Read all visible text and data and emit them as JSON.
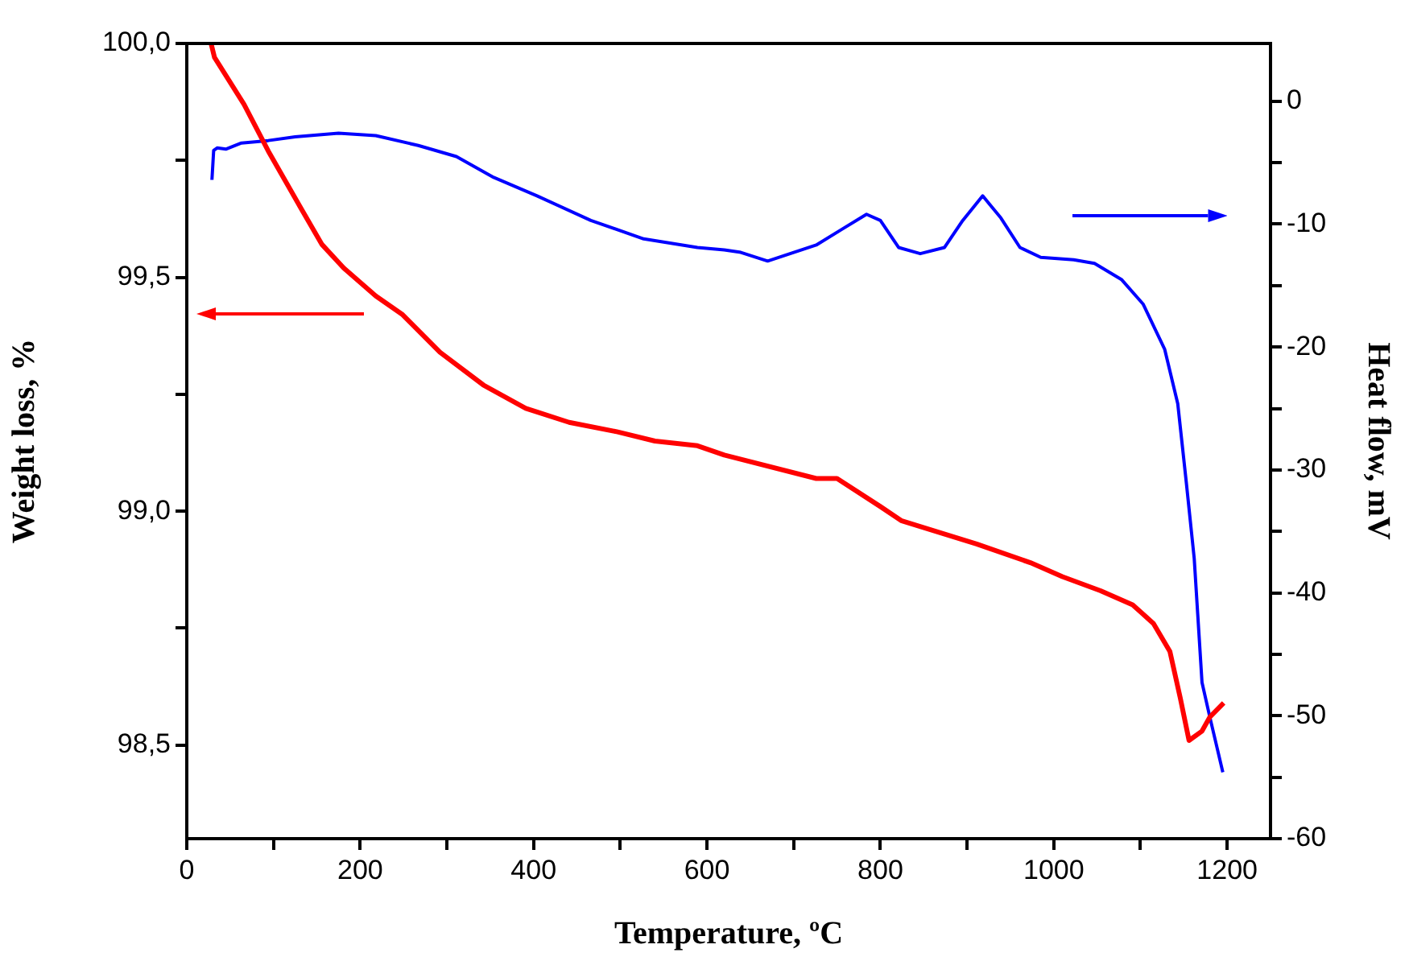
{
  "chart_data": {
    "type": "line",
    "xlabel": "Temperature, ºC",
    "ylabel": "Weight loss, %",
    "y2label": "Heat flow, mV",
    "xlim": [
      0,
      1250
    ],
    "ylim": [
      98.3,
      100
    ],
    "y2lim": [
      -60,
      4.7
    ],
    "xticks": [
      0,
      {
        "value": 100,
        "label": null
      },
      200,
      {
        "value": 300,
        "label": null
      },
      400,
      {
        "value": 500,
        "label": null
      },
      600,
      {
        "value": 700,
        "label": null
      },
      800,
      {
        "value": 900,
        "label": null
      },
      1000,
      {
        "value": 1100,
        "label": null
      },
      1200
    ],
    "yticks": [
      {
        "value": 98.5,
        "label": "98,5"
      },
      {
        "value": 98.75,
        "label": null
      },
      {
        "value": 99,
        "label": "99,0"
      },
      {
        "value": 99.25,
        "label": null
      },
      {
        "value": 99.5,
        "label": "99,5"
      },
      {
        "value": 99.75,
        "label": null
      },
      {
        "value": 100,
        "label": "100,0"
      }
    ],
    "y2ticks": [
      -60,
      {
        "value": -55,
        "label": null
      },
      -50,
      {
        "value": -45,
        "label": null
      },
      -40,
      {
        "value": -35,
        "label": null
      },
      -30,
      {
        "value": -25,
        "label": null
      },
      -20,
      {
        "value": -15,
        "label": null
      },
      -10,
      {
        "value": -5,
        "label": null
      },
      0
    ],
    "series": [
      {
        "axis": "y",
        "color": "#ff0000",
        "x": [
          28,
          32,
          66,
          94,
          131,
          156,
          181,
          218,
          249,
          292,
          342,
          391,
          441,
          496,
          540,
          589,
          620,
          726,
          750,
          800,
          824,
          911,
          973,
          1010,
          1054,
          1091,
          1115,
          1134,
          1146,
          1156,
          1171,
          1180,
          1196
        ],
        "values": [
          100.0,
          99.97,
          99.87,
          99.77,
          99.65,
          99.57,
          99.52,
          99.46,
          99.42,
          99.34,
          99.27,
          99.22,
          99.19,
          99.17,
          99.15,
          99.14,
          99.12,
          99.07,
          99.07,
          99.01,
          98.98,
          98.93,
          98.89,
          98.86,
          98.83,
          98.8,
          98.76,
          98.7,
          98.6,
          98.51,
          98.53,
          98.56,
          98.59
        ]
      },
      {
        "axis": "y2",
        "color": "#0000ff",
        "x": [
          29,
          31,
          35,
          45,
          63,
          94,
          125,
          175,
          218,
          267,
          311,
          354,
          404,
          466,
          527,
          589,
          620,
          639,
          670,
          726,
          756,
          784,
          800,
          821,
          846,
          874,
          895,
          918,
          939,
          961,
          985,
          1023,
          1047,
          1078,
          1103,
          1128,
          1143,
          1153,
          1162,
          1171,
          1180,
          1195
        ],
        "values": [
          -6.4,
          -4.0,
          -3.8,
          -3.9,
          -3.4,
          -3.2,
          -2.9,
          -2.6,
          -2.8,
          -3.6,
          -4.5,
          -6.2,
          -7.7,
          -9.7,
          -11.2,
          -11.9,
          -12.1,
          -12.3,
          -13.0,
          -11.7,
          -10.4,
          -9.2,
          -9.7,
          -11.9,
          -12.4,
          -11.9,
          -9.7,
          -7.7,
          -9.5,
          -11.9,
          -12.7,
          -12.9,
          -13.2,
          -14.5,
          -16.5,
          -20.2,
          -24.6,
          -31.1,
          -37.2,
          -47.3,
          -50.1,
          -54.6
        ]
      }
    ]
  }
}
